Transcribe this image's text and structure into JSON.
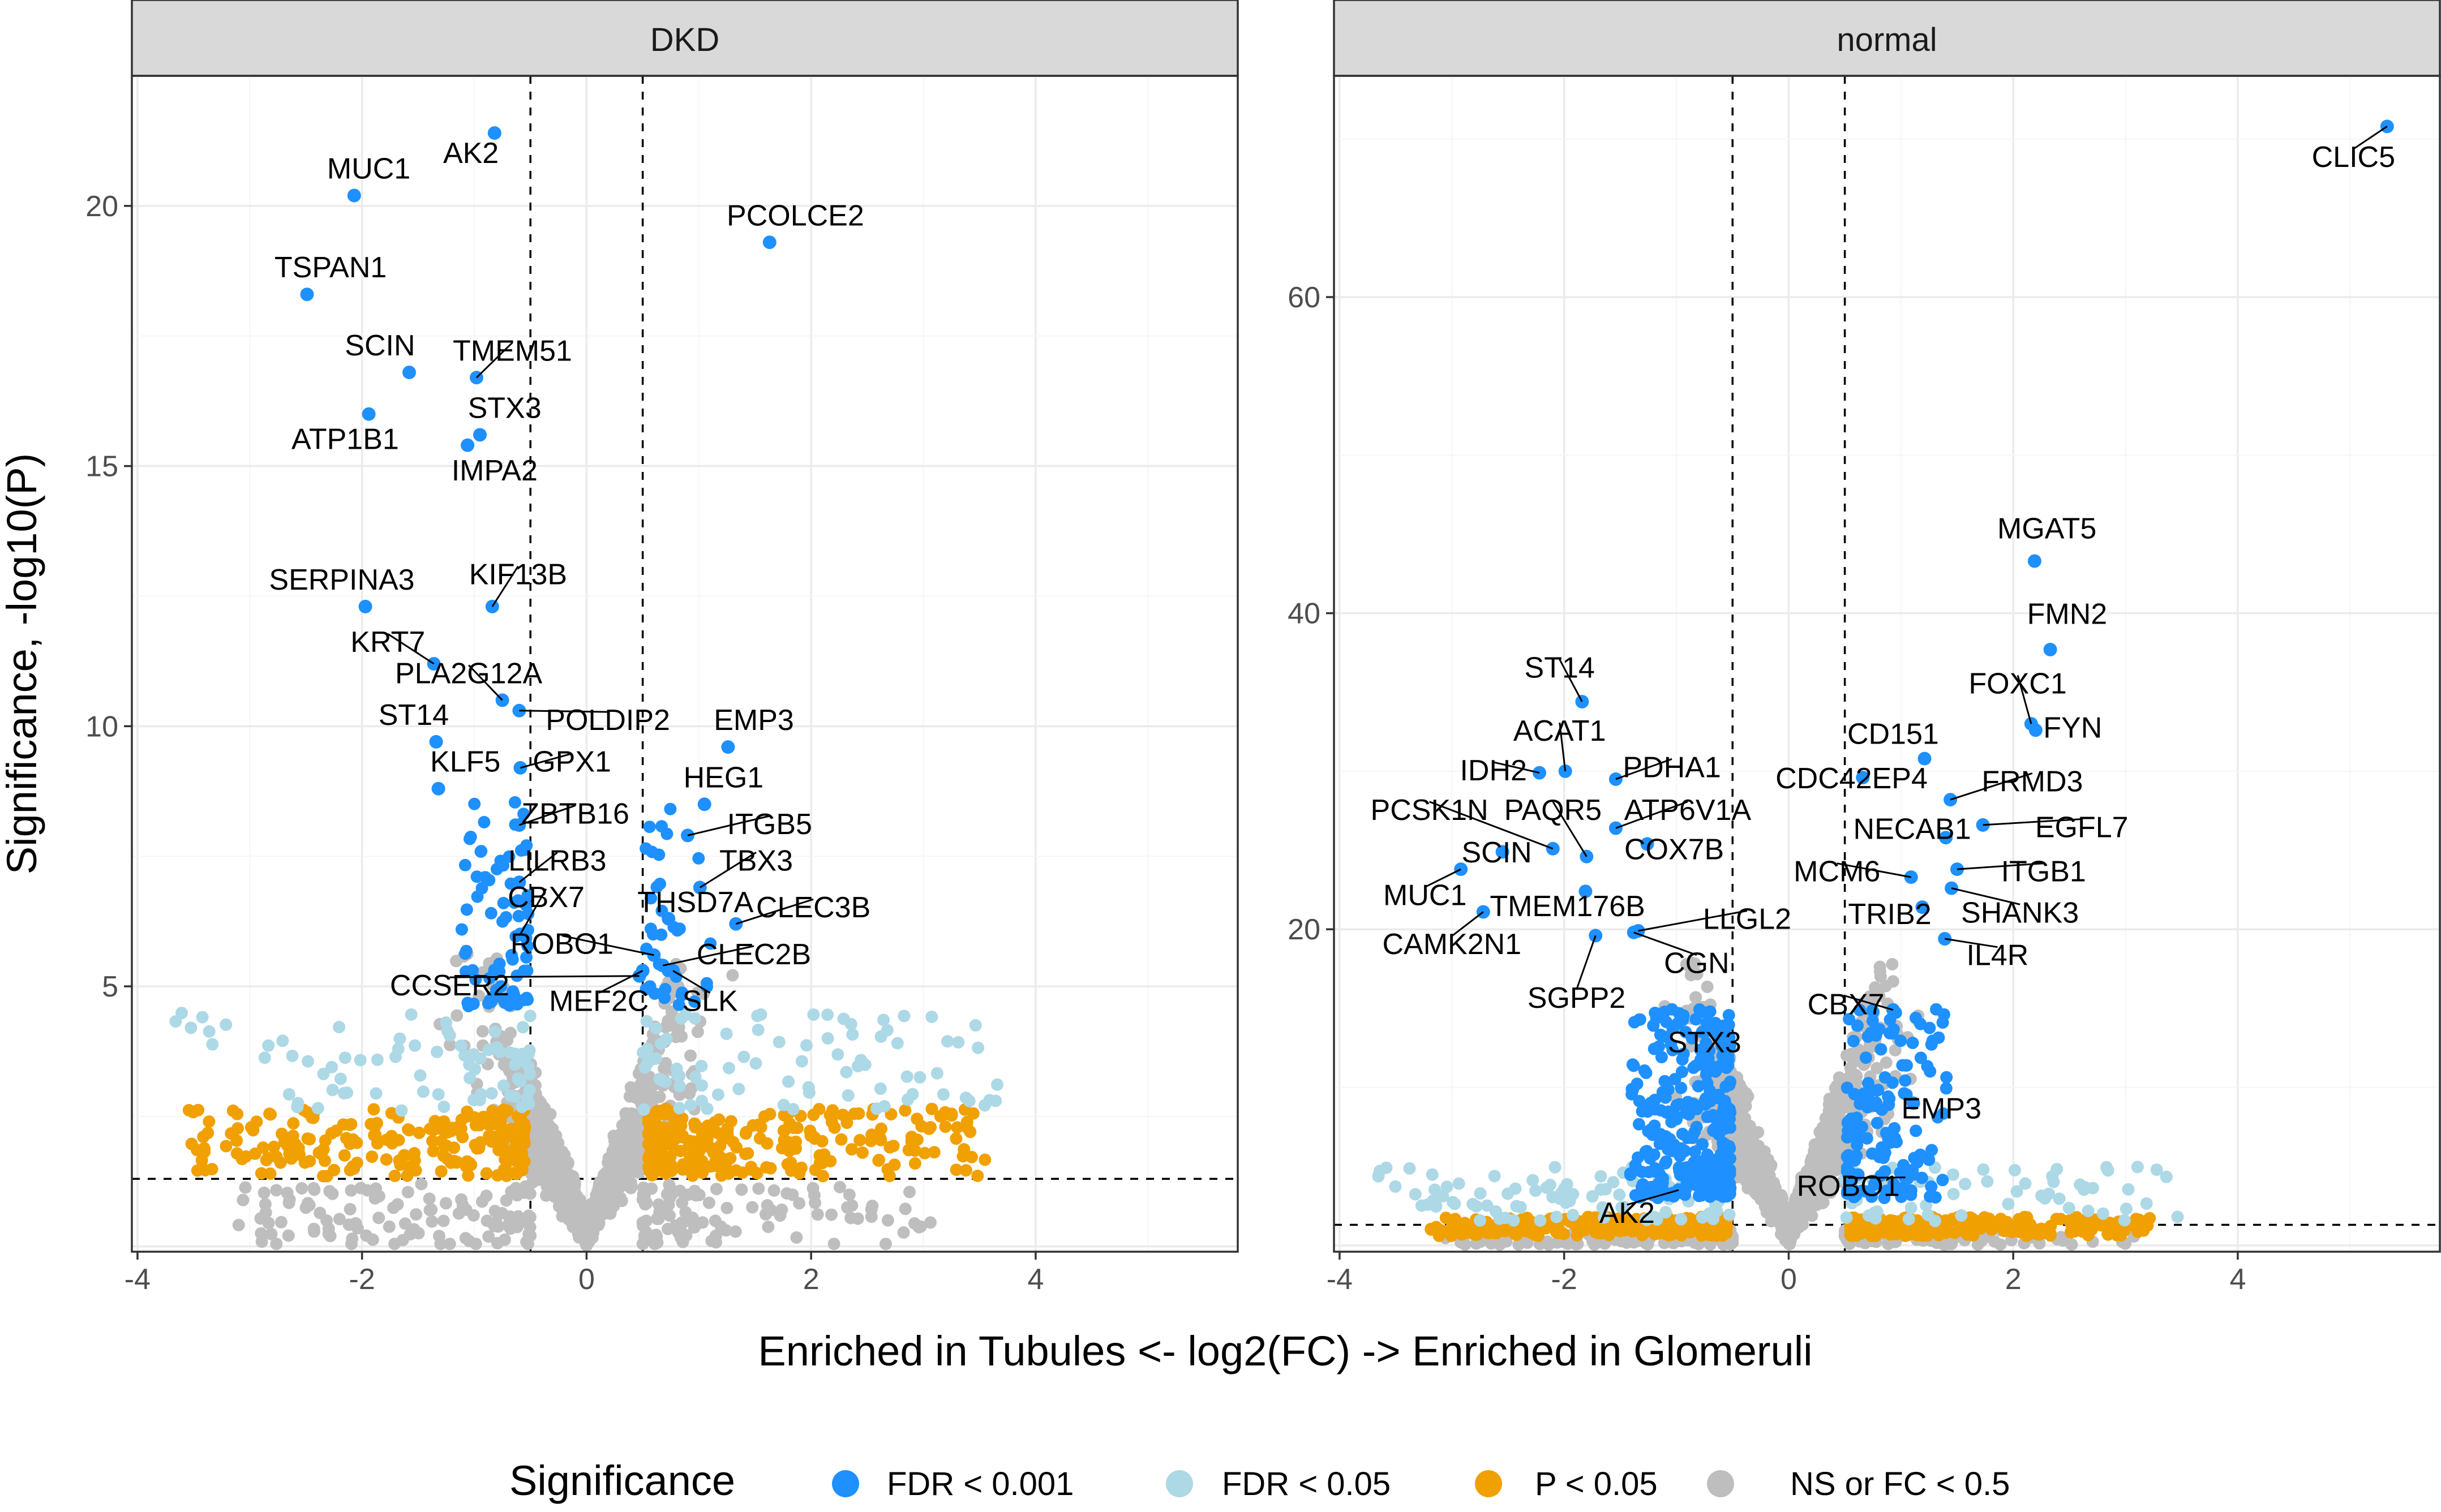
{
  "colors": {
    "FDR < 0.001": "#1e90ff",
    "FDR < 0.05": "#add8e6",
    "P < 0.05": "#f0a000",
    "NS or FC < 0.5": "#bebebe"
  },
  "x_axis_title": "Enriched in Tubules <- log2(FC) -> Enriched in Glomeruli",
  "y_axis_title": "Significance, -log10(P)",
  "legend": {
    "title": "Significance",
    "items": [
      {
        "label": "FDR < 0.001",
        "color": "#1e90ff"
      },
      {
        "label": "FDR < 0.05",
        "color": "#add8e6"
      },
      {
        "label": "P < 0.05",
        "color": "#f0a000"
      },
      {
        "label": "NS or FC < 0.5",
        "color": "#bebebe"
      }
    ]
  },
  "chart_data": [
    {
      "type": "scatter",
      "title": "DKD",
      "xlabel": "Enriched in Tubules <- log2(FC) -> Enriched in Glomeruli",
      "ylabel": "Significance, -log10(P)",
      "xlim": [
        -4.05,
        5.8
      ],
      "ylim": [
        -0.1,
        22.5
      ],
      "x_ticks": [
        -4,
        -2,
        0,
        2,
        4
      ],
      "y_ticks": [
        5,
        10,
        15,
        20
      ],
      "vlines": [
        -0.5,
        0.5
      ],
      "hline": 1.3,
      "grid": true,
      "legend_position": "bottom",
      "labeled_points": [
        {
          "gene": "AK2",
          "x": -0.82,
          "y": 21.4,
          "lx": -1.03,
          "ly": 21.0
        },
        {
          "gene": "MUC1",
          "x": -2.07,
          "y": 20.2,
          "lx": -1.94,
          "ly": 20.7
        },
        {
          "gene": "PCOLCE2",
          "x": 1.63,
          "y": 19.3,
          "lx": 1.86,
          "ly": 19.8
        },
        {
          "gene": "TSPAN1",
          "x": -2.49,
          "y": 18.3,
          "lx": -2.28,
          "ly": 18.8
        },
        {
          "gene": "SCIN",
          "x": -1.58,
          "y": 16.8,
          "lx": -1.84,
          "ly": 17.3
        },
        {
          "gene": "TMEM51",
          "x": -0.98,
          "y": 16.7,
          "lx": -0.66,
          "ly": 17.2
        },
        {
          "gene": "ATP1B1",
          "x": -1.94,
          "y": 16.0,
          "lx": -2.15,
          "ly": 15.5
        },
        {
          "gene": "STX3",
          "x": -0.95,
          "y": 15.6,
          "lx": -0.73,
          "ly": 16.1
        },
        {
          "gene": "IMPA2",
          "x": -1.06,
          "y": 15.4,
          "lx": -0.82,
          "ly": 14.9
        },
        {
          "gene": "SERPINA3",
          "x": -1.97,
          "y": 12.3,
          "lx": -2.18,
          "ly": 12.8
        },
        {
          "gene": "KIF13B",
          "x": -0.84,
          "y": 12.3,
          "lx": -0.61,
          "ly": 12.9
        },
        {
          "gene": "KRT7",
          "x": -1.36,
          "y": 11.2,
          "lx": -1.77,
          "ly": 11.6
        },
        {
          "gene": "PLA2G12A",
          "x": -0.75,
          "y": 10.5,
          "lx": -1.05,
          "ly": 11.0
        },
        {
          "gene": "POLDIP2",
          "x": -0.6,
          "y": 10.3,
          "lx": 0.19,
          "ly": 10.1
        },
        {
          "gene": "EMP3",
          "x": 1.26,
          "y": 9.6,
          "lx": 1.49,
          "ly": 10.1
        },
        {
          "gene": "ST14",
          "x": -1.34,
          "y": 9.7,
          "lx": -1.54,
          "ly": 10.2
        },
        {
          "gene": "KLF5",
          "x": -1.32,
          "y": 8.8,
          "lx": -1.08,
          "ly": 9.3
        },
        {
          "gene": "GPX1",
          "x": -0.59,
          "y": 9.2,
          "lx": -0.13,
          "ly": 9.3
        },
        {
          "gene": "HEG1",
          "x": 1.05,
          "y": 8.5,
          "lx": 1.22,
          "ly": 9.0
        },
        {
          "gene": "ITGB5",
          "x": 0.9,
          "y": 7.9,
          "lx": 1.63,
          "ly": 8.1
        },
        {
          "gene": "ZBTB16",
          "x": -0.6,
          "y": 8.1,
          "lx": -0.1,
          "ly": 8.3
        },
        {
          "gene": "TBX3",
          "x": 1.01,
          "y": 6.9,
          "lx": 1.51,
          "ly": 7.4
        },
        {
          "gene": "LILRB3",
          "x": -0.6,
          "y": 7.0,
          "lx": -0.26,
          "ly": 7.4
        },
        {
          "gene": "CLEC3B",
          "x": 1.33,
          "y": 6.2,
          "lx": 2.02,
          "ly": 6.5
        },
        {
          "gene": "THSD7A",
          "x": 0.73,
          "y": 6.3,
          "lx": 0.97,
          "ly": 6.6
        },
        {
          "gene": "CBX7",
          "x": -0.59,
          "y": 6.0,
          "lx": -0.36,
          "ly": 6.7
        },
        {
          "gene": "ROBO1",
          "x": 0.6,
          "y": 5.6,
          "lx": -0.22,
          "ly": 5.8
        },
        {
          "gene": "CLEC2B",
          "x": 0.68,
          "y": 5.4,
          "lx": 1.49,
          "ly": 5.6
        },
        {
          "gene": "CCSER2",
          "x": 0.47,
          "y": 5.2,
          "lx": -1.22,
          "ly": 5.0
        },
        {
          "gene": "MEF2C",
          "x": 0.5,
          "y": 5.3,
          "lx": 0.11,
          "ly": 4.7
        },
        {
          "gene": "SLK",
          "x": 0.77,
          "y": 5.3,
          "lx": 1.1,
          "ly": 4.7
        }
      ]
    },
    {
      "type": "scatter",
      "title": "normal",
      "xlabel": "Enriched in Tubules <- log2(FC) -> Enriched in Glomeruli",
      "ylabel": "Significance, -log10(P)",
      "xlim": [
        -4.05,
        5.8
      ],
      "ylim": [
        -0.4,
        74
      ],
      "x_ticks": [
        -4,
        -2,
        0,
        2,
        4
      ],
      "y_ticks": [
        20,
        40,
        60
      ],
      "vlines": [
        -0.5,
        0.5
      ],
      "hline": 1.3,
      "grid": true,
      "legend_position": "bottom",
      "labeled_points": [
        {
          "gene": "CLIC5",
          "x": 5.33,
          "y": 70.8,
          "lx": 5.03,
          "ly": 68.8
        },
        {
          "gene": "MGAT5",
          "x": 2.19,
          "y": 43.3,
          "lx": 2.3,
          "ly": 45.3
        },
        {
          "gene": "FMN2",
          "x": 2.33,
          "y": 37.7,
          "lx": 2.48,
          "ly": 39.9
        },
        {
          "gene": "FOXC1",
          "x": 2.16,
          "y": 33.0,
          "lx": 2.04,
          "ly": 35.5
        },
        {
          "gene": "FYN",
          "x": 2.2,
          "y": 32.6,
          "lx": 2.53,
          "ly": 32.7
        },
        {
          "gene": "ST14",
          "x": -1.84,
          "y": 34.4,
          "lx": -2.04,
          "ly": 36.5
        },
        {
          "gene": "ACAT1",
          "x": -1.99,
          "y": 30.0,
          "lx": -2.04,
          "ly": 32.5
        },
        {
          "gene": "CD151",
          "x": 1.21,
          "y": 30.8,
          "lx": 0.93,
          "ly": 32.3
        },
        {
          "gene": "IDH2",
          "x": -2.22,
          "y": 29.9,
          "lx": -2.63,
          "ly": 30.0
        },
        {
          "gene": "PDHA1",
          "x": -1.54,
          "y": 29.5,
          "lx": -1.04,
          "ly": 30.2
        },
        {
          "gene": "CDC42EP4",
          "x": 0.66,
          "y": 29.6,
          "lx": 0.56,
          "ly": 29.5
        },
        {
          "gene": "FRMD3",
          "x": 1.44,
          "y": 28.2,
          "lx": 2.17,
          "ly": 29.3
        },
        {
          "gene": "PCSK1N",
          "x": -2.1,
          "y": 25.1,
          "lx": -3.2,
          "ly": 27.5
        },
        {
          "gene": "PAQR5",
          "x": -1.8,
          "y": 24.6,
          "lx": -2.1,
          "ly": 27.5
        },
        {
          "gene": "ATP6V1A",
          "x": -1.54,
          "y": 26.4,
          "lx": -0.9,
          "ly": 27.5
        },
        {
          "gene": "NECAB1",
          "x": 1.4,
          "y": 25.8,
          "lx": 1.1,
          "ly": 26.3
        },
        {
          "gene": "EGFL7",
          "x": 1.73,
          "y": 26.6,
          "lx": 2.61,
          "ly": 26.4
        },
        {
          "gene": "COX7B",
          "x": -1.26,
          "y": 25.4,
          "lx": -1.02,
          "ly": 25.0
        },
        {
          "gene": "SCIN",
          "x": -2.55,
          "y": 24.9,
          "lx": -2.6,
          "ly": 24.8
        },
        {
          "gene": "MCM6",
          "x": 1.09,
          "y": 23.3,
          "lx": 0.43,
          "ly": 23.6
        },
        {
          "gene": "ITGB1",
          "x": 1.5,
          "y": 23.8,
          "lx": 2.27,
          "ly": 23.6
        },
        {
          "gene": "MUC1",
          "x": -2.92,
          "y": 23.8,
          "lx": -3.24,
          "ly": 22.1
        },
        {
          "gene": "TMEM176B",
          "x": -1.81,
          "y": 22.4,
          "lx": -1.97,
          "ly": 21.4
        },
        {
          "gene": "SHANK3",
          "x": 1.45,
          "y": 22.6,
          "lx": 2.06,
          "ly": 21.0
        },
        {
          "gene": "TRIB2",
          "x": 1.19,
          "y": 21.4,
          "lx": 0.9,
          "ly": 20.9
        },
        {
          "gene": "LLGL2",
          "x": -1.34,
          "y": 19.9,
          "lx": -0.37,
          "ly": 20.6
        },
        {
          "gene": "CAMK2N1",
          "x": -2.72,
          "y": 21.1,
          "lx": -3.0,
          "ly": 19.0
        },
        {
          "gene": "IL4R",
          "x": 1.39,
          "y": 19.4,
          "lx": 1.86,
          "ly": 18.3
        },
        {
          "gene": "CGN",
          "x": -1.38,
          "y": 19.8,
          "lx": -0.82,
          "ly": 17.8
        },
        {
          "gene": "SGPP2",
          "x": -1.72,
          "y": 19.6,
          "lx": -1.89,
          "ly": 15.6
        },
        {
          "gene": "CBX7",
          "x": 0.93,
          "y": 14.9,
          "lx": 0.51,
          "ly": 15.2
        },
        {
          "gene": "STX3",
          "x": -1.03,
          "y": 13.8,
          "lx": -0.75,
          "ly": 12.8
        },
        {
          "gene": "EMP3",
          "x": 1.11,
          "y": 9.0,
          "lx": 1.36,
          "ly": 8.6
        },
        {
          "gene": "ROBO1",
          "x": 1.04,
          "y": 4.3,
          "lx": 0.53,
          "ly": 3.7
        },
        {
          "gene": "AK2",
          "x": -0.98,
          "y": 3.5,
          "lx": -1.44,
          "ly": 2.0
        }
      ]
    }
  ]
}
